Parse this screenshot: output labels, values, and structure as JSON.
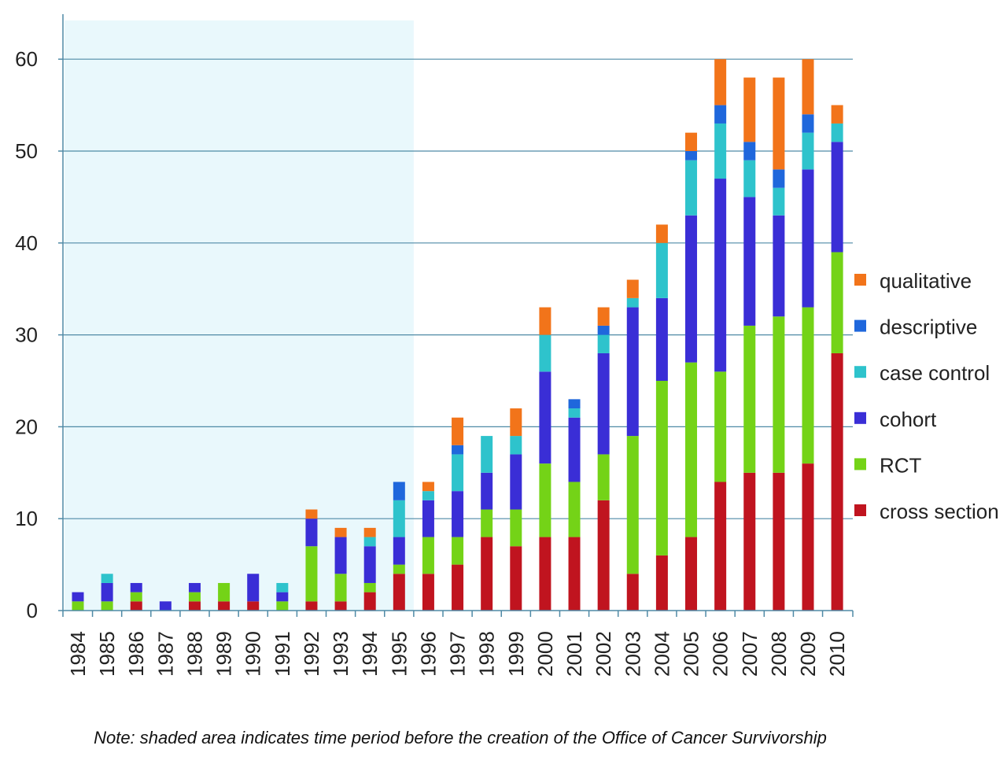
{
  "chart_data": {
    "type": "bar",
    "stacked": true,
    "title": "",
    "xlabel": "",
    "ylabel": "",
    "ylim": [
      0,
      65
    ],
    "yticks": [
      0,
      10,
      20,
      30,
      40,
      50,
      60
    ],
    "grid": true,
    "legend_position": "right",
    "shaded_region": {
      "from": "1984",
      "to": "1995",
      "color": "#e9f8fc"
    },
    "categories": [
      "1984",
      "1985",
      "1986",
      "1987",
      "1988",
      "1989",
      "1990",
      "1991",
      "1992",
      "1993",
      "1994",
      "1995",
      "1996",
      "1997",
      "1998",
      "1999",
      "2000",
      "2001",
      "2002",
      "2003",
      "2004",
      "2005",
      "2006",
      "2007",
      "2008",
      "2009",
      "2010"
    ],
    "series": [
      {
        "name": "cross section",
        "color": "#c0141f",
        "values": [
          0,
          0,
          1,
          0,
          1,
          1,
          1,
          0,
          1,
          1,
          2,
          4,
          4,
          5,
          8,
          7,
          8,
          8,
          12,
          4,
          6,
          8,
          14,
          15,
          15,
          16,
          28
        ]
      },
      {
        "name": "RCT",
        "color": "#74d317",
        "values": [
          1,
          1,
          1,
          0,
          1,
          2,
          0,
          1,
          6,
          3,
          1,
          1,
          4,
          3,
          3,
          4,
          8,
          6,
          5,
          15,
          19,
          19,
          12,
          16,
          17,
          17,
          11
        ]
      },
      {
        "name": "cohort",
        "color": "#3a2ed6",
        "values": [
          1,
          2,
          1,
          1,
          1,
          0,
          3,
          1,
          3,
          4,
          4,
          3,
          4,
          5,
          4,
          6,
          10,
          7,
          11,
          14,
          9,
          16,
          21,
          14,
          11,
          15,
          12
        ]
      },
      {
        "name": "case control",
        "color": "#2ec3cc",
        "values": [
          0,
          1,
          0,
          0,
          0,
          0,
          0,
          1,
          0,
          0,
          1,
          4,
          1,
          4,
          4,
          2,
          4,
          1,
          2,
          1,
          6,
          6,
          6,
          4,
          3,
          4,
          2
        ]
      },
      {
        "name": "descriptive",
        "color": "#1f67dc",
        "values": [
          0,
          0,
          0,
          0,
          0,
          0,
          0,
          0,
          0,
          0,
          0,
          2,
          0,
          1,
          0,
          0,
          0,
          1,
          1,
          0,
          0,
          1,
          2,
          2,
          2,
          2,
          0
        ]
      },
      {
        "name": "qualitative",
        "color": "#f2741a",
        "values": [
          0,
          0,
          0,
          0,
          0,
          0,
          0,
          0,
          1,
          1,
          1,
          0,
          1,
          3,
          0,
          3,
          3,
          0,
          2,
          2,
          2,
          2,
          5,
          7,
          10,
          6,
          2
        ]
      }
    ],
    "legend": [
      "qualitative",
      "descriptive",
      "case control",
      "cohort",
      "RCT",
      "cross section"
    ]
  },
  "note": "Note: shaded area indicates time period before the creation of the Office of Cancer Survivorship"
}
